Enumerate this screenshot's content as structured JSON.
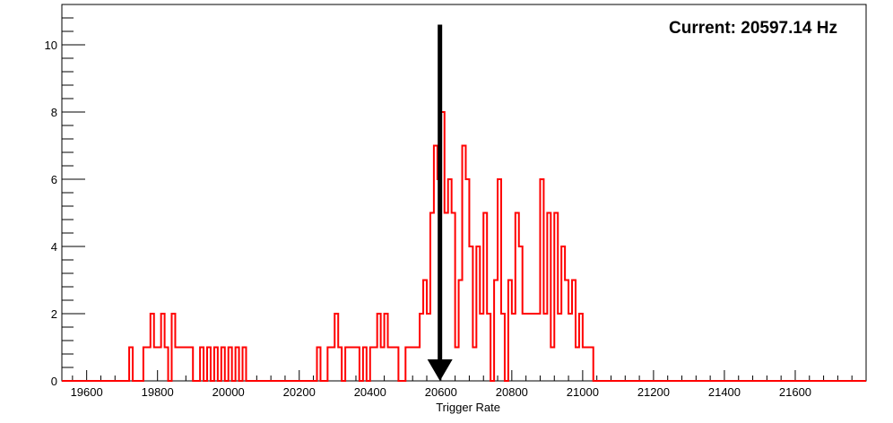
{
  "chart_data": {
    "type": "histogram-step",
    "xlabel": "Trigger Rate",
    "ylabel": "",
    "xlim": [
      19530,
      21800
    ],
    "ylim": [
      0,
      11.2
    ],
    "x_ticks": [
      19600,
      19800,
      20000,
      20200,
      20400,
      20600,
      20800,
      21000,
      21200,
      21400,
      21600
    ],
    "y_ticks": [
      0,
      2,
      4,
      6,
      8,
      10
    ],
    "current_label": "Current: 20597.14 Hz",
    "current_value": 20597.14,
    "marker": {
      "type": "down-arrow",
      "x": 20597.14,
      "y_top": 10.6,
      "y_bottom": 0
    },
    "series": [
      {
        "color": "#ff0000",
        "bin_width": 10,
        "points": [
          [
            19720,
            1
          ],
          [
            19760,
            1
          ],
          [
            19770,
            1
          ],
          [
            19780,
            2
          ],
          [
            19790,
            1
          ],
          [
            19800,
            1
          ],
          [
            19810,
            2
          ],
          [
            19820,
            1
          ],
          [
            19840,
            2
          ],
          [
            19850,
            1
          ],
          [
            19860,
            1
          ],
          [
            19870,
            1
          ],
          [
            19880,
            1
          ],
          [
            19890,
            1
          ],
          [
            19920,
            1
          ],
          [
            19940,
            1
          ],
          [
            19960,
            1
          ],
          [
            19980,
            1
          ],
          [
            20000,
            1
          ],
          [
            20020,
            1
          ],
          [
            20040,
            1
          ],
          [
            20250,
            1
          ],
          [
            20280,
            1
          ],
          [
            20290,
            1
          ],
          [
            20300,
            2
          ],
          [
            20310,
            1
          ],
          [
            20330,
            1
          ],
          [
            20340,
            1
          ],
          [
            20350,
            1
          ],
          [
            20360,
            1
          ],
          [
            20380,
            1
          ],
          [
            20400,
            1
          ],
          [
            20410,
            1
          ],
          [
            20420,
            2
          ],
          [
            20430,
            1
          ],
          [
            20440,
            2
          ],
          [
            20450,
            1
          ],
          [
            20460,
            1
          ],
          [
            20470,
            1
          ],
          [
            20500,
            1
          ],
          [
            20510,
            1
          ],
          [
            20520,
            1
          ],
          [
            20530,
            1
          ],
          [
            20540,
            2
          ],
          [
            20550,
            3
          ],
          [
            20560,
            2
          ],
          [
            20570,
            5
          ],
          [
            20580,
            7
          ],
          [
            20590,
            6
          ],
          [
            20600,
            8
          ],
          [
            20610,
            5
          ],
          [
            20620,
            6
          ],
          [
            20630,
            5
          ],
          [
            20640,
            1
          ],
          [
            20650,
            3
          ],
          [
            20660,
            7
          ],
          [
            20670,
            6
          ],
          [
            20680,
            4
          ],
          [
            20690,
            1
          ],
          [
            20700,
            4
          ],
          [
            20710,
            2
          ],
          [
            20720,
            5
          ],
          [
            20730,
            2
          ],
          [
            20740,
            0
          ],
          [
            20750,
            3
          ],
          [
            20760,
            6
          ],
          [
            20770,
            2
          ],
          [
            20780,
            0
          ],
          [
            20790,
            3
          ],
          [
            20800,
            2
          ],
          [
            20810,
            5
          ],
          [
            20820,
            4
          ],
          [
            20830,
            2
          ],
          [
            20840,
            2
          ],
          [
            20850,
            2
          ],
          [
            20860,
            2
          ],
          [
            20870,
            2
          ],
          [
            20880,
            6
          ],
          [
            20890,
            2
          ],
          [
            20900,
            5
          ],
          [
            20910,
            1
          ],
          [
            20920,
            5
          ],
          [
            20930,
            2
          ],
          [
            20940,
            4
          ],
          [
            20950,
            3
          ],
          [
            20960,
            2
          ],
          [
            20970,
            3
          ],
          [
            20980,
            1
          ],
          [
            20990,
            2
          ],
          [
            21000,
            1
          ],
          [
            21010,
            1
          ],
          [
            21020,
            1
          ]
        ]
      }
    ]
  }
}
